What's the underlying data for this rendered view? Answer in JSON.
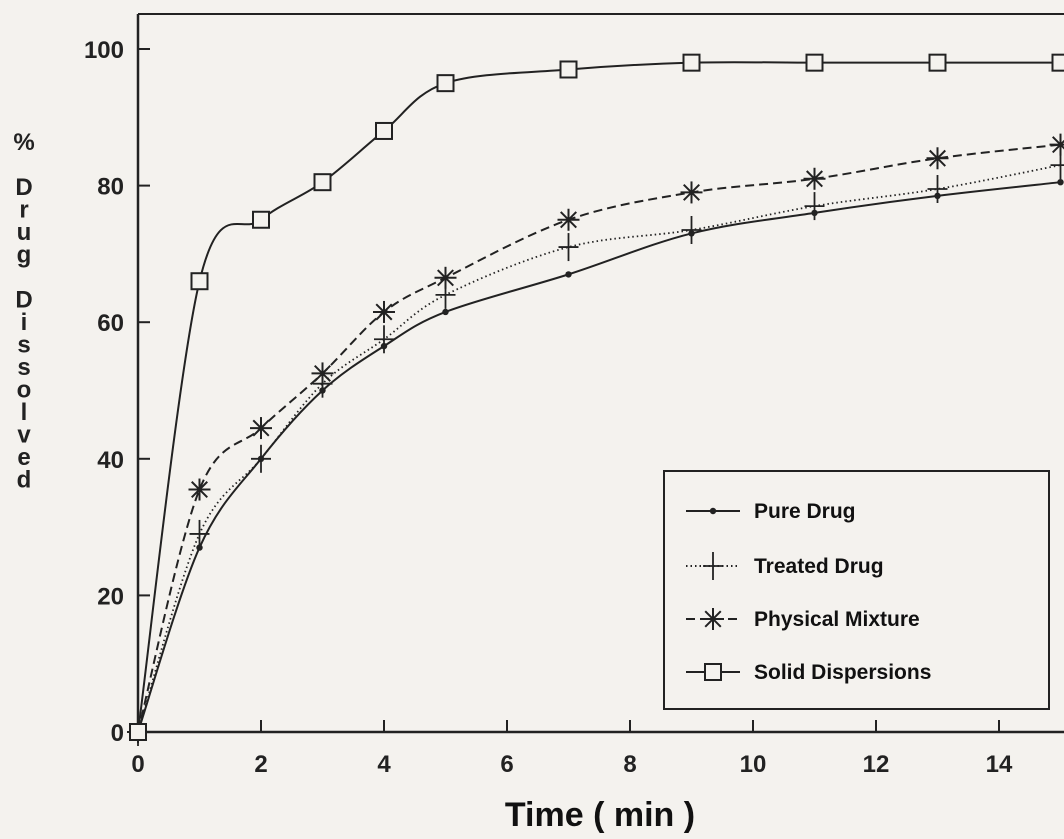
{
  "chart_data": {
    "type": "line",
    "title": "",
    "xlabel": "Time ( min )",
    "ylabel": "% Drug Dissolved",
    "xlim": [
      0,
      15
    ],
    "ylim": [
      0,
      105
    ],
    "xticks": [
      0,
      2,
      4,
      6,
      8,
      10,
      12,
      14
    ],
    "yticks": [
      0,
      20,
      40,
      60,
      80,
      100
    ],
    "legend_position": "bottom-right",
    "grid": false,
    "series": [
      {
        "name": "Pure Drug",
        "marker": "dot",
        "line": "solid",
        "x": [
          0,
          1,
          2,
          3,
          4,
          5,
          7,
          9,
          11,
          13,
          15
        ],
        "y": [
          0,
          27,
          40,
          50,
          56.5,
          61.5,
          67,
          73,
          76,
          78.5,
          80.5
        ]
      },
      {
        "name": "Treated Drug",
        "marker": "plus",
        "line": "dotted",
        "x": [
          0,
          1,
          2,
          3,
          4,
          5,
          7,
          9,
          11,
          13,
          15
        ],
        "y": [
          0,
          29,
          40,
          51,
          57.5,
          64,
          71,
          73.5,
          77,
          79.5,
          83
        ]
      },
      {
        "name": "Physical Mixture",
        "marker": "asterisk",
        "line": "dashed",
        "x": [
          0,
          1,
          2,
          3,
          4,
          5,
          7,
          9,
          11,
          13,
          15
        ],
        "y": [
          0,
          35.5,
          44.5,
          52.5,
          61.5,
          66.5,
          75,
          79,
          81,
          84,
          86
        ]
      },
      {
        "name": "Solid Dispersions",
        "marker": "square",
        "line": "solid",
        "x": [
          0,
          1,
          2,
          3,
          4,
          5,
          7,
          9,
          11,
          13,
          15
        ],
        "y": [
          0,
          66,
          75,
          80.5,
          88,
          95,
          97,
          98,
          98,
          98,
          98
        ]
      }
    ]
  }
}
